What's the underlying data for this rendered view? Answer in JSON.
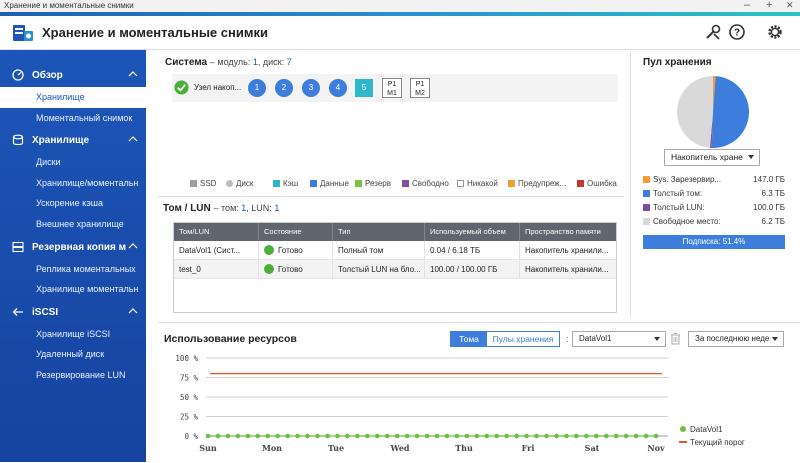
{
  "window": {
    "title": "Хранение и моментальные снимки",
    "minimize": "–",
    "maximize": "+",
    "close": "✕"
  },
  "header": {
    "title": "Хранение и моментальные снимки"
  },
  "sidebar": {
    "sections": [
      {
        "label": "Обзор",
        "icon": "gauge-icon",
        "items": [
          "Хранилище",
          "Моментальный снимок"
        ]
      },
      {
        "label": "Хранилище",
        "icon": "database-icon",
        "items": [
          "Диски",
          "Хранилище/моментальн",
          "Ускорение кэша",
          "Внешнее хранилище"
        ]
      },
      {
        "label": "Резервная копия мо",
        "icon": "backup-icon",
        "items": [
          "Реплика моментальных",
          "Хранилище моментальн"
        ]
      },
      {
        "label": "iSCSI",
        "icon": "iscsi-icon",
        "items": [
          "Хранилище iSCSI",
          "Удаленный диск",
          "Резервирование LUN"
        ]
      }
    ],
    "active_item": "Хранилище"
  },
  "system": {
    "title": "Система",
    "sub_prefix": "– модуль:",
    "modules": "1",
    "sub_middle": ", диск:",
    "disks": "7",
    "node_label": "Узел накоп...",
    "disk_slots": [
      "1",
      "2",
      "3",
      "4"
    ],
    "ssd_slot": "5",
    "pm_slots": [
      {
        "l1": "P1",
        "l2": "M1"
      },
      {
        "l1": "P1",
        "l2": "M2"
      }
    ],
    "legend": [
      {
        "label": "SSD",
        "color": "#9e9e9e",
        "shape": "square"
      },
      {
        "label": "Диск",
        "color": "#bdbdbd",
        "shape": "circle"
      },
      {
        "label": "Кэш",
        "color": "#2db8c9",
        "shape": "square"
      },
      {
        "label": "Данные",
        "color": "#3d7ddc",
        "shape": "square"
      },
      {
        "label": "Резерв",
        "color": "#7cc242",
        "shape": "square"
      },
      {
        "label": "Свободно",
        "color": "#7d4f9e",
        "shape": "square"
      },
      {
        "label": "Никакой",
        "color": "#ffffff",
        "shape": "square"
      },
      {
        "label": "Предупреж...",
        "color": "#f39c33",
        "shape": "square"
      },
      {
        "label": "Ошибка",
        "color": "#c0392b",
        "shape": "square"
      }
    ]
  },
  "volumes": {
    "title": "Том / LUN",
    "sub_prefix": "– том:",
    "vol_count": "1",
    "sub_middle": ", LUN:",
    "lun_count": "1",
    "columns": [
      "Том/LUN",
      "Состояние",
      "Тип",
      "Используемый объем",
      "Пространство памяти"
    ],
    "rows": [
      {
        "name": "DataVol1 (Сист...",
        "status": "Готово",
        "type": "Полный том",
        "used": "0.04 / 6.18 ТБ",
        "space": "Накопитель хранили..."
      },
      {
        "name": "test_0",
        "status": "Готово",
        "type": "Толстый LUN на бло...",
        "used": "100.00 / 100.00 ГБ",
        "space": "Накопитель хранили..."
      }
    ]
  },
  "pool": {
    "title": "Пул хранения",
    "selector": "Накопитель хране",
    "chart_data": {
      "type": "pie",
      "slices": [
        {
          "label": "Sys. Зарезервир...",
          "value": 147.0,
          "unit": "ГБ",
          "color": "#f39c33"
        },
        {
          "label": "Толстый том:",
          "value": 6.3,
          "unit": "ТБ",
          "color": "#3d7ddc"
        },
        {
          "label": "Толстый LUN:",
          "value": 100.0,
          "unit": "ГБ",
          "color": "#7d4f9e"
        },
        {
          "label": "Свободное место:",
          "value": 6.2,
          "unit": "ТБ",
          "color": "#d9d9d9"
        }
      ]
    },
    "rows": [
      {
        "label": "Sys. Зарезервир...",
        "value": "147.0 ГБ",
        "color": "#f39c33"
      },
      {
        "label": "Толстый том:",
        "value": "6.3 ТБ",
        "color": "#3d7ddc"
      },
      {
        "label": "Толстый LUN:",
        "value": "100.0 ГБ",
        "color": "#7d4f9e"
      },
      {
        "label": "Свободное место:",
        "value": "6.2 ТБ",
        "color": "#d9d9d9"
      }
    ],
    "subscription": "Подписка: 51.4%"
  },
  "resources": {
    "title": "Использование ресурсов",
    "tab_volumes": "Тома",
    "tab_pools": "Пулы хранения",
    "separator": ":",
    "volume_select": "DataVol1",
    "range_select": "За последнюю неде",
    "chart_data": {
      "type": "line",
      "categories": [
        "Sun",
        "Mon",
        "Tue",
        "Wed",
        "Thu",
        "Fri",
        "Sat",
        "Nov"
      ],
      "y_ticks": [
        "100 %",
        "75 %",
        "50 %",
        "25 %",
        "0 %"
      ],
      "ylim": [
        0,
        100
      ],
      "series": [
        {
          "name": "DataVol1",
          "color": "#6abf3e",
          "point_count": 46,
          "value": 0
        },
        {
          "name": "Текущий порог",
          "color": "#e8542a",
          "value": 80
        }
      ]
    }
  }
}
